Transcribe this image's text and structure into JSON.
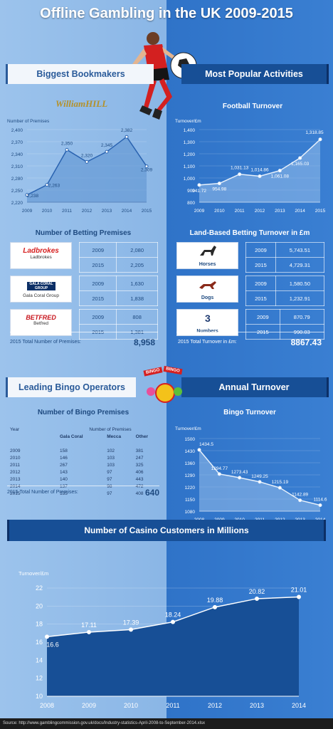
{
  "title": "Offline Gambling in the UK 2009-2015",
  "sections": {
    "bookmakers": "Biggest Bookmakers",
    "activities": "Most Popular Activities",
    "bingo": "Leading Bingo Operators",
    "annual": "Annual Turnover",
    "casino": "Number of Casino Customers in Millions"
  },
  "williamhill_logo": "WilliamHILL",
  "betting_premises_title": "Number of Betting Premises",
  "land_based_title": "Land-Based Betting Turnover in £m",
  "football_title": "Football Turnover",
  "bingo_turnover_title": "Bingo Turnover",
  "bingo_premises_title": "Number of Bingo Premises",
  "premises_table": {
    "rows": [
      {
        "logo": "Ladbrokes",
        "name": "Ladbrokes",
        "entries": [
          {
            "year": "2009",
            "value": "2,080"
          },
          {
            "year": "2015",
            "value": "2,205"
          }
        ]
      },
      {
        "logo": "GALA CORAL GROUP",
        "name": "Gala Coral Group",
        "entries": [
          {
            "year": "2009",
            "value": "1,630"
          },
          {
            "year": "2015",
            "value": "1,838"
          }
        ]
      },
      {
        "logo": "BETFRED",
        "name": "Betfred",
        "entries": [
          {
            "year": "2009",
            "value": "808"
          },
          {
            "year": "2015",
            "value": "1,381"
          }
        ]
      }
    ],
    "total_label": "2015 Total Number of Premises:",
    "total_value": "8,958"
  },
  "turnover_table": {
    "rows": [
      {
        "name": "Horses",
        "entries": [
          {
            "year": "2009",
            "value": "5,743.51"
          },
          {
            "year": "2015",
            "value": "4,729.31"
          }
        ]
      },
      {
        "name": "Dogs",
        "entries": [
          {
            "year": "2009",
            "value": "1,580.50"
          },
          {
            "year": "2015",
            "value": "1,232.91"
          }
        ]
      },
      {
        "name": "Numbers",
        "entries": [
          {
            "year": "2009",
            "value": "870.79"
          },
          {
            "year": "2015",
            "value": "990.03"
          }
        ]
      }
    ],
    "total_label": "2015 Total Turnover in £m:",
    "total_value": "8867.43"
  },
  "bingo_table": {
    "year_header": "Year",
    "group_header": "Number of Premises",
    "columns": [
      "Gala Coral",
      "Mecca",
      "Other"
    ],
    "rows": [
      {
        "year": "2009",
        "values": [
          "158",
          "102",
          "381"
        ]
      },
      {
        "year": "2010",
        "values": [
          "146",
          "103",
          "247"
        ]
      },
      {
        "year": "2011",
        "values": [
          "267",
          "103",
          "325"
        ]
      },
      {
        "year": "2012",
        "values": [
          "143",
          "97",
          "406"
        ]
      },
      {
        "year": "2013",
        "values": [
          "140",
          "97",
          "443"
        ]
      },
      {
        "year": "2014",
        "values": [
          "137",
          "98",
          "472"
        ]
      },
      {
        "year": "2015",
        "values": [
          "135",
          "97",
          "408"
        ]
      }
    ],
    "total_label": "2015 Total Number of Premises:",
    "total_value": "640"
  },
  "bingo_badge": "BINGO",
  "source": "Source: http://www.gamblingcommission.gov.uk/docs/Industry-statistics-April-2008-to-September-2014.xlsx",
  "colors": {
    "left_bg": "#8ab6e6",
    "right_bg": "#3a7fd2",
    "dark_blue": "#1e4a80",
    "casino_fill": "#174f96"
  },
  "chart_data": [
    {
      "id": "wh",
      "type": "area",
      "ylabel": "Number of Premises",
      "x": [
        "2009",
        "2010",
        "2011",
        "2012",
        "2013",
        "2014",
        "2015"
      ],
      "values": [
        2238,
        2263,
        2350,
        2320,
        2345,
        2382,
        2309
      ],
      "labels": [
        "2,238",
        "2,263",
        "2,350",
        "2,320",
        "2,345",
        "2,382",
        "2,309"
      ],
      "ylim": [
        2220,
        2400
      ],
      "yticks": [
        {
          "v": 2220,
          "t": "2,220"
        },
        {
          "v": 2250,
          "t": "2,250"
        },
        {
          "v": 2280,
          "t": "2,280"
        },
        {
          "v": 2310,
          "t": "2,310"
        },
        {
          "v": 2340,
          "t": "2,340"
        },
        {
          "v": 2370,
          "t": "2,370"
        },
        {
          "v": 2400,
          "t": "2,400"
        }
      ]
    },
    {
      "id": "football",
      "type": "area",
      "ylabel": "Turnover/£m",
      "x": [
        "2009",
        "2010",
        "2011",
        "2012",
        "2013",
        "2014",
        "2015"
      ],
      "values": [
        941.72,
        954.98,
        1031.13,
        1014.86,
        1061.08,
        1165.03,
        1318.85
      ],
      "labels": [
        "941.72",
        "954.98",
        "1,031.13",
        "1,014.86",
        "1,061.08",
        "1,165.03",
        "1,318.85"
      ],
      "ylim": [
        800,
        1400
      ],
      "yticks": [
        {
          "v": 800,
          "t": "800"
        },
        {
          "v": 900,
          "t": "900"
        },
        {
          "v": 1000,
          "t": "1,000"
        },
        {
          "v": 1100,
          "t": "1,100"
        },
        {
          "v": 1200,
          "t": "1,200"
        },
        {
          "v": 1300,
          "t": "1,300"
        },
        {
          "v": 1400,
          "t": "1,400"
        }
      ]
    },
    {
      "id": "bingo",
      "type": "area",
      "ylabel": "Turnover/£m",
      "x": [
        "2008",
        "2009",
        "2010",
        "2011",
        "2012",
        "2013",
        "2014"
      ],
      "values": [
        1434.5,
        1294.77,
        1273.43,
        1249.25,
        1215.19,
        1142.89,
        1114.6
      ],
      "labels": [
        "1434.5",
        "1294.77",
        "1273.43",
        "1249.25",
        "1215.19",
        "1142.89",
        "1114.6"
      ],
      "ylim": [
        1080,
        1500
      ],
      "yticks": [
        {
          "v": 1080,
          "t": "1080"
        },
        {
          "v": 1150,
          "t": "1150"
        },
        {
          "v": 1220,
          "t": "1220"
        },
        {
          "v": 1290,
          "t": "1290"
        },
        {
          "v": 1360,
          "t": "1360"
        },
        {
          "v": 1430,
          "t": "1430"
        },
        {
          "v": 1500,
          "t": "1500"
        }
      ]
    },
    {
      "id": "casino",
      "type": "area",
      "ylabel": "Turnover/£m",
      "x": [
        "2008",
        "2009",
        "2010",
        "2011",
        "2012",
        "2013",
        "2014"
      ],
      "values": [
        16.6,
        17.11,
        17.39,
        18.24,
        19.88,
        20.82,
        21.01
      ],
      "labels": [
        "16.6",
        "17.11",
        "17.39",
        "18.24",
        "19.88",
        "20.82",
        "21.01"
      ],
      "ylim": [
        10,
        22
      ],
      "yticks": [
        {
          "v": 10,
          "t": "10"
        },
        {
          "v": 12,
          "t": "12"
        },
        {
          "v": 14,
          "t": "14"
        },
        {
          "v": 16,
          "t": "16"
        },
        {
          "v": 18,
          "t": "18"
        },
        {
          "v": 20,
          "t": "20"
        },
        {
          "v": 22,
          "t": "22"
        }
      ]
    }
  ]
}
